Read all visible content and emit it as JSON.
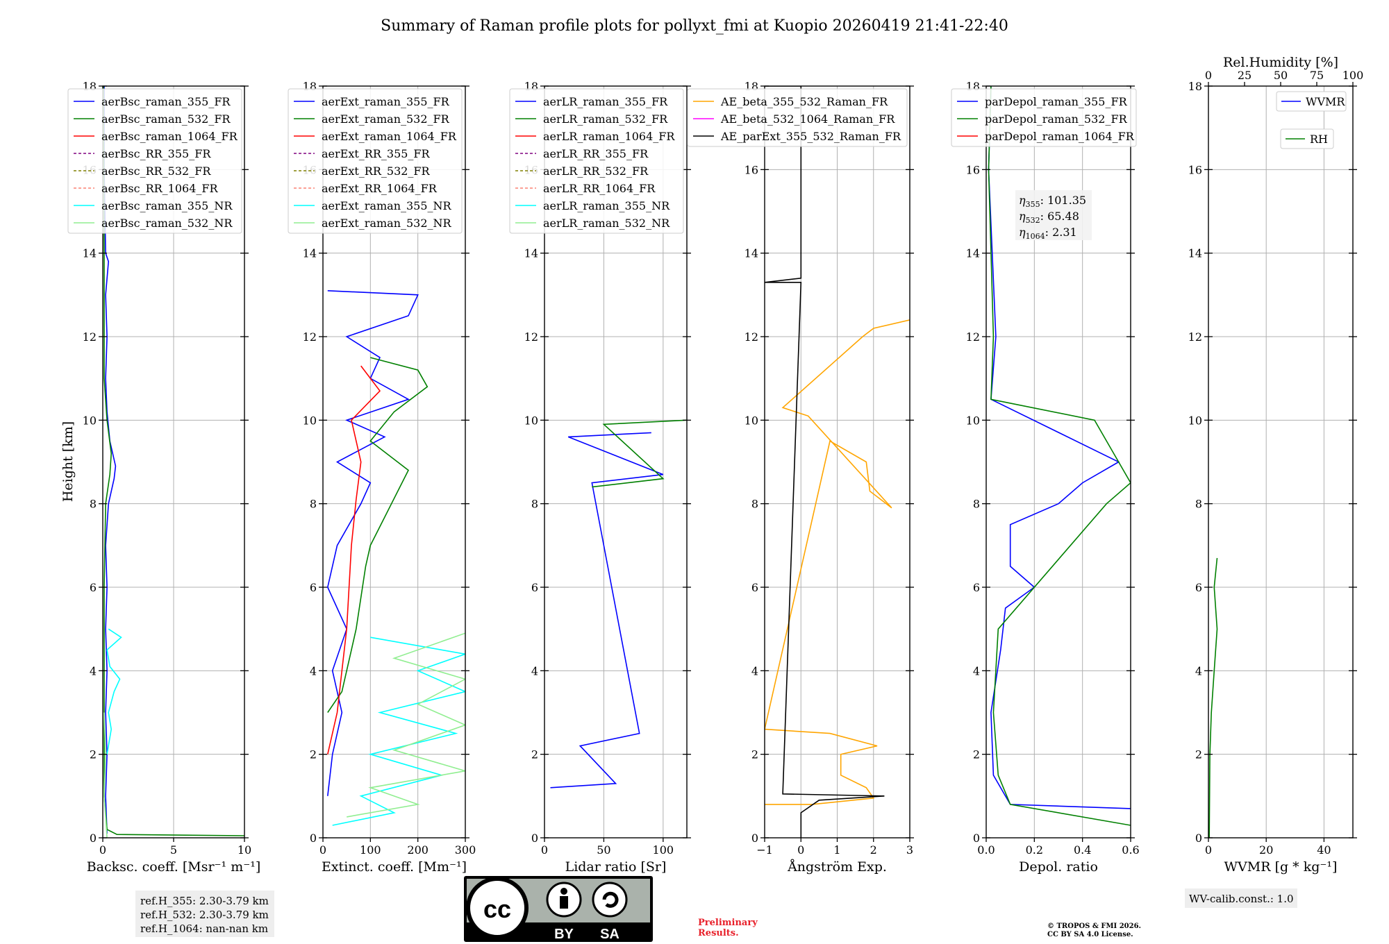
{
  "title": "Summary of Raman profile plots for pollyxt_fmi at Kuopio 20260419 21:41-22:40",
  "colors": {
    "c355": "#0000ff",
    "c532": "#008000",
    "c1064": "#ff0000",
    "rr355": "#800080",
    "rr532": "#808000",
    "rr1064": "#fa8072",
    "nr355": "#40e0d0",
    "nr532": "#90ee90",
    "ae1": "#ffa500",
    "ae2": "#ff00ff",
    "ae3": "#000000",
    "cyan": "#00ffff",
    "lime": "#32cd32"
  },
  "panel_common": {
    "ylabel": "Height [km]",
    "yticks": [
      "0",
      "2",
      "4",
      "6",
      "8",
      "10",
      "12",
      "14",
      "16",
      "18"
    ]
  },
  "chart_data": [
    {
      "type": "line",
      "id": "bsc",
      "xlabel": "Backsc. coeff. [Msr⁻¹ m⁻¹]",
      "xlim": [
        0,
        10
      ],
      "xticks": [
        "0",
        "5",
        "10"
      ],
      "ylim": [
        0,
        18
      ],
      "legend": [
        "aerBsc_raman_355_FR",
        "aerBsc_raman_532_FR",
        "aerBsc_raman_1064_FR",
        "aerBsc_RR_355_FR",
        "aerBsc_RR_532_FR",
        "aerBsc_RR_1064_FR",
        "aerBsc_raman_355_NR",
        "aerBsc_raman_532_NR"
      ],
      "series": [
        {
          "name": "aerBsc_raman_355_FR",
          "color": "c355",
          "points": [
            [
              0.3,
              0.1
            ],
            [
              0.2,
              1
            ],
            [
              0.3,
              2
            ],
            [
              0.2,
              3
            ],
            [
              0.3,
              4
            ],
            [
              0.2,
              5
            ],
            [
              0.3,
              6
            ],
            [
              0.2,
              7
            ],
            [
              0.4,
              8
            ],
            [
              0.8,
              8.6
            ],
            [
              0.9,
              8.9
            ],
            [
              0.5,
              9.5
            ],
            [
              0.3,
              10.2
            ],
            [
              0.2,
              11
            ],
            [
              0.3,
              12
            ],
            [
              0.2,
              13
            ],
            [
              0.4,
              13.8
            ],
            [
              0.2,
              14
            ],
            [
              0.1,
              16
            ],
            [
              0.1,
              18
            ]
          ]
        },
        {
          "name": "aerBsc_raman_532_FR",
          "color": "c532",
          "points": [
            [
              10,
              0.05
            ],
            [
              1,
              0.08
            ],
            [
              0.3,
              0.2
            ],
            [
              0.1,
              1
            ],
            [
              0.1,
              3
            ],
            [
              0.1,
              6
            ],
            [
              0.2,
              8
            ],
            [
              0.5,
              8.7
            ],
            [
              0.6,
              9.2
            ],
            [
              0.3,
              10
            ],
            [
              0.1,
              11
            ],
            [
              0.1,
              14
            ],
            [
              0.05,
              18
            ]
          ]
        },
        {
          "name": "aerBsc_raman_355_NR",
          "color": "cyan",
          "points": [
            [
              0.3,
              2
            ],
            [
              0.6,
              2.6
            ],
            [
              0.4,
              3
            ],
            [
              0.8,
              3.5
            ],
            [
              1.2,
              3.8
            ],
            [
              0.5,
              4.1
            ],
            [
              0.3,
              4.5
            ],
            [
              1.3,
              4.8
            ],
            [
              0.4,
              5
            ]
          ]
        },
        {
          "name": "aerBsc_raman_532_NR",
          "color": "nr532",
          "points": [
            [
              0.3,
              0
            ],
            [
              0.1,
              1
            ],
            [
              0.2,
              2
            ],
            [
              0.1,
              3
            ]
          ]
        }
      ]
    },
    {
      "type": "line",
      "id": "ext",
      "xlabel": "Extinct. coeff. [Mm⁻¹]",
      "xlim": [
        0,
        300
      ],
      "xticks": [
        "0",
        "100",
        "200",
        "300"
      ],
      "ylim": [
        0,
        18
      ],
      "legend": [
        "aerExt_raman_355_FR",
        "aerExt_raman_532_FR",
        "aerExt_raman_1064_FR",
        "aerExt_RR_355_FR",
        "aerExt_RR_532_FR",
        "aerExt_RR_1064_FR",
        "aerExt_raman_355_NR",
        "aerExt_raman_532_NR"
      ],
      "series": [
        {
          "name": "aerExt_raman_355_FR",
          "color": "c355",
          "points": [
            [
              10,
              1
            ],
            [
              20,
              2
            ],
            [
              40,
              3
            ],
            [
              20,
              4
            ],
            [
              50,
              5
            ],
            [
              10,
              6
            ],
            [
              30,
              7
            ],
            [
              80,
              8
            ],
            [
              100,
              8.5
            ],
            [
              30,
              9
            ],
            [
              130,
              9.6
            ],
            [
              50,
              10
            ],
            [
              180,
              10.5
            ],
            [
              100,
              11
            ],
            [
              120,
              11.5
            ],
            [
              50,
              12
            ],
            [
              180,
              12.5
            ],
            [
              200,
              13
            ],
            [
              10,
              13.1
            ]
          ]
        },
        {
          "name": "aerExt_raman_532_FR",
          "color": "c532",
          "points": [
            [
              10,
              3
            ],
            [
              40,
              3.5
            ],
            [
              60,
              4.5
            ],
            [
              70,
              5
            ],
            [
              90,
              6.5
            ],
            [
              100,
              7
            ],
            [
              180,
              8.8
            ],
            [
              100,
              9.5
            ],
            [
              150,
              10.2
            ],
            [
              220,
              10.8
            ],
            [
              200,
              11.2
            ],
            [
              100,
              11.5
            ]
          ]
        },
        {
          "name": "aerExt_raman_1064_FR",
          "color": "c1064",
          "points": [
            [
              10,
              2
            ],
            [
              30,
              3
            ],
            [
              40,
              4
            ],
            [
              50,
              5
            ],
            [
              60,
              7
            ],
            [
              70,
              8.1
            ],
            [
              80,
              9
            ],
            [
              60,
              10
            ],
            [
              120,
              10.7
            ],
            [
              80,
              11.3
            ]
          ]
        },
        {
          "name": "aerExt_raman_355_NR",
          "color": "cyan",
          "points": [
            [
              20,
              0.3
            ],
            [
              150,
              0.6
            ],
            [
              80,
              1
            ],
            [
              250,
              1.5
            ],
            [
              100,
              2
            ],
            [
              280,
              2.5
            ],
            [
              120,
              3
            ],
            [
              300,
              3.5
            ],
            [
              200,
              4
            ],
            [
              300,
              4.4
            ],
            [
              100,
              4.8
            ]
          ]
        },
        {
          "name": "aerExt_raman_532_NR",
          "color": "nr532",
          "points": [
            [
              50,
              0.5
            ],
            [
              200,
              0.8
            ],
            [
              100,
              1.2
            ],
            [
              300,
              1.6
            ],
            [
              150,
              2.1
            ],
            [
              300,
              2.7
            ],
            [
              200,
              3.2
            ],
            [
              300,
              3.8
            ],
            [
              150,
              4.3
            ],
            [
              300,
              4.9
            ]
          ]
        }
      ]
    },
    {
      "type": "line",
      "id": "lr",
      "xlabel": "Lidar ratio [Sr]",
      "xlim": [
        0,
        120
      ],
      "xticks": [
        "0",
        "50",
        "100"
      ],
      "ylim": [
        0,
        18
      ],
      "legend": [
        "aerLR_raman_355_FR",
        "aerLR_raman_532_FR",
        "aerLR_raman_1064_FR",
        "aerLR_RR_355_FR",
        "aerLR_RR_532_FR",
        "aerLR_RR_1064_FR",
        "aerLR_raman_355_NR",
        "aerLR_raman_532_NR"
      ],
      "series": [
        {
          "name": "aerLR_raman_355_FR",
          "color": "c355",
          "points": [
            [
              5,
              1.2
            ],
            [
              60,
              1.3
            ],
            [
              30,
              2.2
            ],
            [
              80,
              2.5
            ],
            [
              40,
              8.5
            ],
            [
              100,
              8.7
            ],
            [
              20,
              9.6
            ],
            [
              90,
              9.7
            ]
          ]
        },
        {
          "name": "aerLR_raman_532_FR",
          "color": "c532",
          "points": [
            [
              40,
              8.4
            ],
            [
              100,
              8.6
            ],
            [
              50,
              9.9
            ],
            [
              120,
              10
            ]
          ]
        }
      ]
    },
    {
      "type": "line",
      "id": "ae",
      "xlabel": "Ångström Exp.",
      "xlim": [
        -1,
        3
      ],
      "xticks": [
        "−1",
        "0",
        "1",
        "2",
        "3"
      ],
      "ylim": [
        0,
        18
      ],
      "legend": [
        "AE_beta_355_532_Raman_FR",
        "AE_beta_532_1064_Raman_FR",
        "AE_parExt_355_532_Raman_FR"
      ],
      "series": [
        {
          "name": "AE_beta_355_532_Raman_FR",
          "color": "ae1",
          "points": [
            [
              -1,
              0.8
            ],
            [
              0.3,
              0.8
            ],
            [
              2,
              0.95
            ],
            [
              1.8,
              1.2
            ],
            [
              1.1,
              1.5
            ],
            [
              1.1,
              2
            ],
            [
              2.1,
              2.2
            ],
            [
              0.8,
              2.5
            ],
            [
              -1,
              2.6
            ],
            [
              0.8,
              9.5
            ],
            [
              1.8,
              9
            ],
            [
              1.9,
              8.3
            ],
            [
              2.5,
              7.9
            ],
            [
              0.2,
              10.1
            ],
            [
              -0.5,
              10.3
            ],
            [
              1.7,
              12
            ],
            [
              2,
              12.2
            ],
            [
              3,
              12.4
            ]
          ]
        },
        {
          "name": "AE_parExt_355_532_Raman_FR",
          "color": "ae3",
          "points": [
            [
              0,
              0
            ],
            [
              0,
              0.6
            ],
            [
              0.5,
              0.9
            ],
            [
              2.3,
              1
            ],
            [
              -0.5,
              1.05
            ],
            [
              0,
              13.3
            ],
            [
              -1,
              13.3
            ],
            [
              0,
              13.4
            ],
            [
              0,
              18
            ],
            [
              -1,
              18
            ]
          ]
        }
      ]
    },
    {
      "type": "line",
      "id": "depol",
      "xlabel": "Depol. ratio",
      "xlim": [
        0,
        0.6
      ],
      "xticks": [
        "0.0",
        "0.2",
        "0.4",
        "0.6"
      ],
      "ylim": [
        0,
        18
      ],
      "legend": [
        "parDepol_raman_355_FR",
        "parDepol_raman_532_FR",
        "parDepol_raman_1064_FR"
      ],
      "annotation": [
        {
          "sym": "η",
          "sub": "355",
          "val": ": 101.35"
        },
        {
          "sym": "η",
          "sub": "532",
          "val": ": 65.48"
        },
        {
          "sym": "η",
          "sub": "1064",
          "val": ": 2.31"
        }
      ],
      "series": [
        {
          "name": "parDepol_raman_355_FR",
          "color": "c355",
          "points": [
            [
              0.6,
              0.7
            ],
            [
              0.1,
              0.8
            ],
            [
              0.03,
              1.5
            ],
            [
              0.02,
              3
            ],
            [
              0.06,
              4.5
            ],
            [
              0.08,
              5.5
            ],
            [
              0.2,
              6
            ],
            [
              0.1,
              6.5
            ],
            [
              0.1,
              7.5
            ],
            [
              0.3,
              8
            ],
            [
              0.4,
              8.5
            ],
            [
              0.55,
              9
            ],
            [
              0.02,
              10.5
            ],
            [
              0.04,
              12
            ],
            [
              0.01,
              16
            ],
            [
              0.02,
              18
            ]
          ]
        },
        {
          "name": "parDepol_raman_532_FR",
          "color": "c532",
          "points": [
            [
              0.6,
              0.3
            ],
            [
              0.1,
              0.8
            ],
            [
              0.05,
              1.5
            ],
            [
              0.03,
              3
            ],
            [
              0.05,
              5
            ],
            [
              0.5,
              8
            ],
            [
              0.6,
              8.5
            ],
            [
              0.5,
              9.5
            ],
            [
              0.45,
              10
            ],
            [
              0.02,
              10.5
            ],
            [
              0.03,
              12
            ],
            [
              0.01,
              16
            ],
            [
              0.02,
              18
            ]
          ]
        }
      ]
    },
    {
      "type": "line",
      "id": "wv",
      "xlabel": "WVMR [g * kg⁻¹]",
      "xlim": [
        0,
        50
      ],
      "xticks": [
        "0",
        "20",
        "40"
      ],
      "ylim": [
        0,
        18
      ],
      "top_axis": {
        "label": "Rel.Humidity [%]",
        "ticks": [
          "0",
          "25",
          "50",
          "75",
          "100"
        ]
      },
      "legend": [
        "WVMR",
        "RH"
      ],
      "series": [
        {
          "name": "RH",
          "color": "c532",
          "points": [
            [
              0.3,
              0
            ],
            [
              0.5,
              2
            ],
            [
              1,
              3
            ],
            [
              2,
              4
            ],
            [
              3,
              5
            ],
            [
              2,
              6
            ],
            [
              3,
              6.7
            ]
          ]
        }
      ]
    }
  ],
  "footer": {
    "refH": [
      "ref.H_355: 2.30-3.79 km",
      "ref.H_532: 2.30-3.79 km",
      "ref.H_1064: nan-nan km"
    ],
    "license_by": "BY",
    "license_sa": "SA",
    "preliminary": "Preliminary\nResults.",
    "copyright": "© TROPOS & FMI 2026.",
    "license_text": "CC BY SA 4.0 License.",
    "wv_calib": "WV-calib.const.: 1.0"
  }
}
